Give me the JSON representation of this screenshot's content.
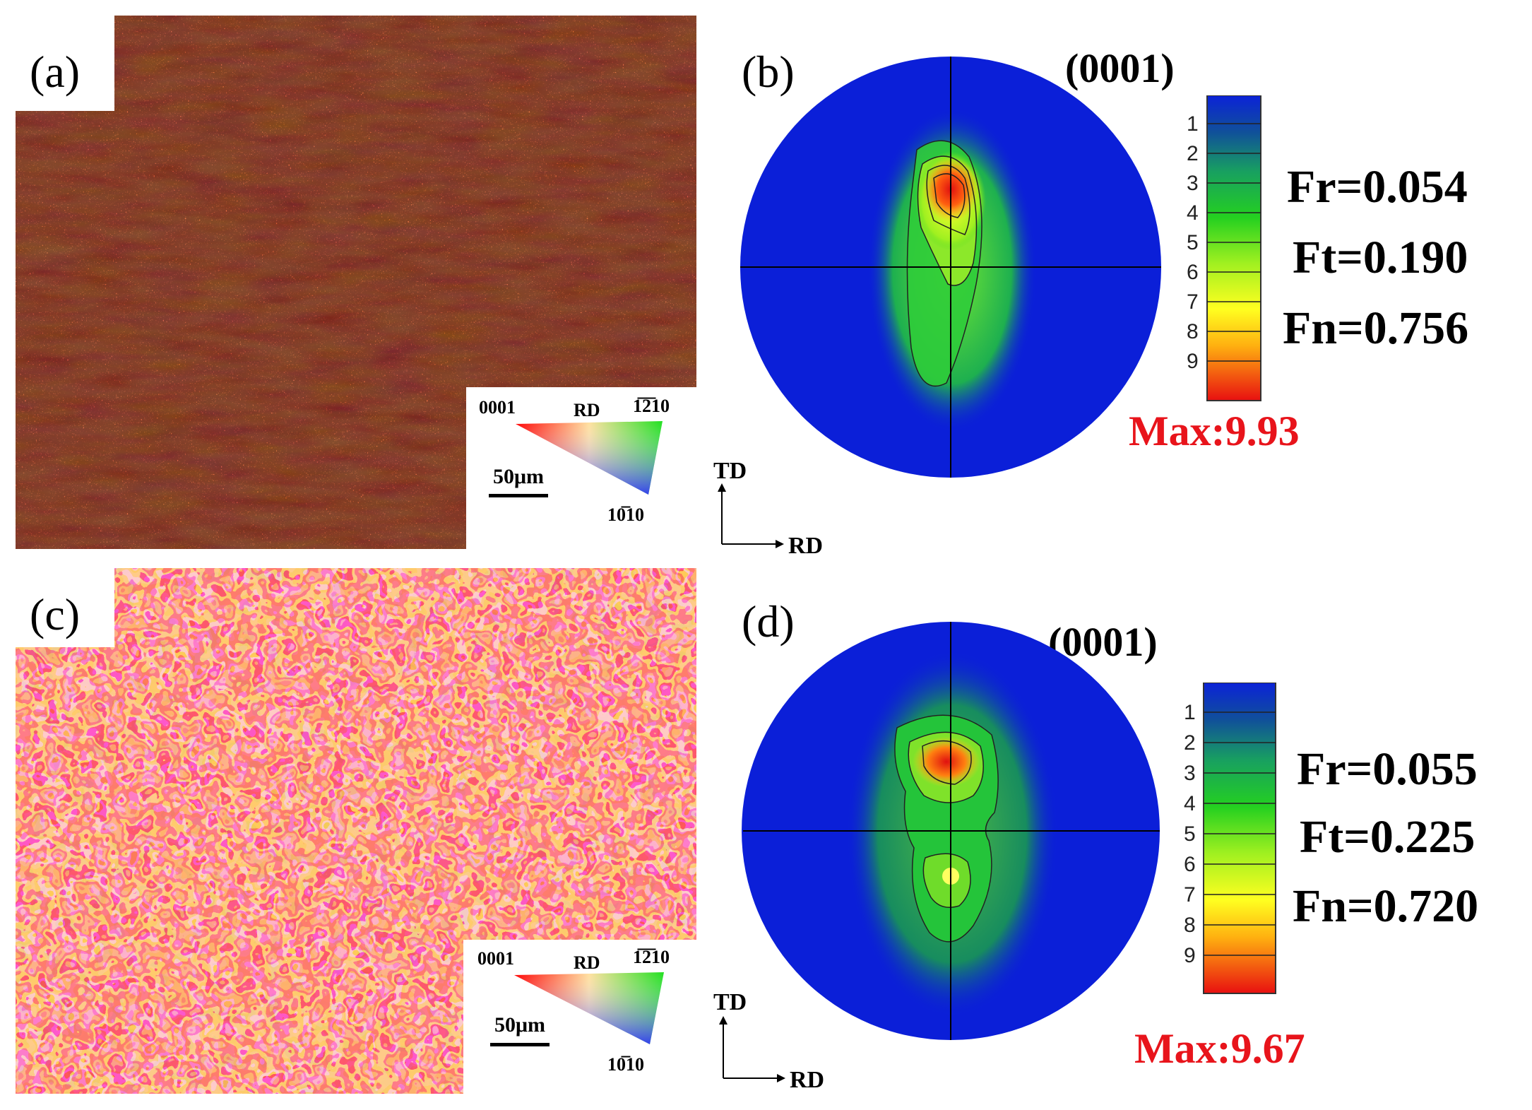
{
  "figure": {
    "panels": [
      {
        "id": "a",
        "label": "(a)",
        "type": "ebsd-map",
        "legend": {
          "corner_left": "0001",
          "corner_rd": "RD",
          "corner_right": "1̅2̅10",
          "corner_bottom": "10̅10",
          "scale_bar": "50μm"
        },
        "axes": {
          "vertical": "TD",
          "horizontal": "RD"
        }
      },
      {
        "id": "b",
        "label": "(b)",
        "type": "pole-figure",
        "plane": "(0001)",
        "colorbar_levels": [
          "1",
          "2",
          "3",
          "4",
          "5",
          "6",
          "7",
          "8",
          "9"
        ],
        "fractions": {
          "Fr": "Fr=0.054",
          "Ft": "Ft=0.190",
          "Fn": "Fn=0.756"
        },
        "max": "Max:9.93"
      },
      {
        "id": "c",
        "label": "(c)",
        "type": "ebsd-map",
        "legend": {
          "corner_left": "0001",
          "corner_rd": "RD",
          "corner_right": "1̅2̅10",
          "corner_bottom": "10̅10",
          "scale_bar": "50μm"
        },
        "axes": {
          "vertical": "TD",
          "horizontal": "RD"
        }
      },
      {
        "id": "d",
        "label": "(d)",
        "type": "pole-figure",
        "plane": "(0001)",
        "colorbar_levels": [
          "1",
          "2",
          "3",
          "4",
          "5",
          "6",
          "7",
          "8",
          "9"
        ],
        "fractions": {
          "Fr": "Fr=0.055",
          "Ft": "Ft=0.225",
          "Fn": "Fn=0.720"
        },
        "max": "Max:9.67"
      }
    ]
  },
  "chart_data": [
    {
      "type": "pole-figure",
      "plane": "(0001)",
      "colorbar": {
        "min": 1,
        "max": 9
      },
      "max_intensity": 9.93,
      "fractions": {
        "Fr": 0.054,
        "Ft": 0.19,
        "Fn": 0.756
      }
    },
    {
      "type": "pole-figure",
      "plane": "(0001)",
      "colorbar": {
        "min": 1,
        "max": 9
      },
      "max_intensity": 9.67,
      "fractions": {
        "Fr": 0.055,
        "Ft": 0.225,
        "Fn": 0.72
      }
    }
  ],
  "colors": {
    "max_text": "#e8141b",
    "pf_background": "#0b1fd8"
  }
}
